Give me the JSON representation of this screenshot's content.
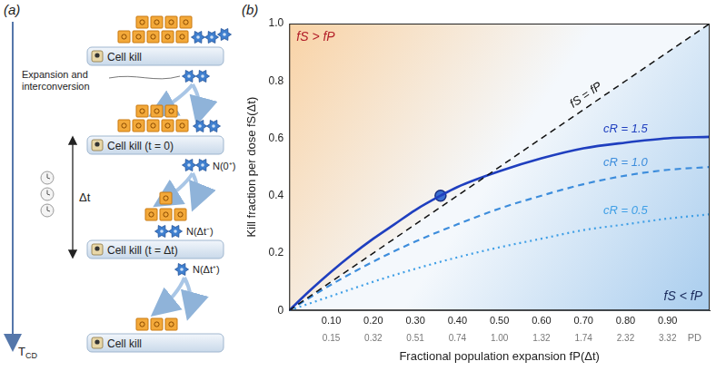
{
  "diagram": {
    "panel_label": "(a)",
    "kill_steps": [
      "Cell kill",
      "Cell kill (t = 0)",
      "Cell kill (t = Δt)",
      "Cell kill"
    ],
    "expansion_label": "Expansion and interconversion",
    "population_labels": [
      "N(0⁺)",
      "N(Δt⁻)",
      "N(Δt⁺)"
    ],
    "interval_label": "Δt",
    "time_label": "TCD"
  },
  "chart_data": {
    "type": "line",
    "panel_label": "(b)",
    "x_label": "Fractional population expansion fP(Δt)",
    "y_label": "Kill fraction per dose fS(Δt)",
    "xlim": [
      0,
      1
    ],
    "ylim": [
      0,
      1
    ],
    "xticks": [
      {
        "value": 0.1,
        "label": "0.10"
      },
      {
        "value": 0.2,
        "label": "0.20"
      },
      {
        "value": 0.3,
        "label": "0.30"
      },
      {
        "value": 0.4,
        "label": "0.40"
      },
      {
        "value": 0.5,
        "label": "0.50"
      },
      {
        "value": 0.6,
        "label": "0.60"
      },
      {
        "value": 0.7,
        "label": "0.70"
      },
      {
        "value": 0.8,
        "label": "0.80"
      },
      {
        "value": 0.9,
        "label": "0.90"
      }
    ],
    "pd_label": "PD",
    "pd_ticks": [
      {
        "value": 0.1,
        "label": "0.15"
      },
      {
        "value": 0.2,
        "label": "0.32"
      },
      {
        "value": 0.3,
        "label": "0.51"
      },
      {
        "value": 0.4,
        "label": "0.74"
      },
      {
        "value": 0.5,
        "label": "1.00"
      },
      {
        "value": 0.6,
        "label": "1.32"
      },
      {
        "value": 0.7,
        "label": "1.74"
      },
      {
        "value": 0.8,
        "label": "2.32"
      },
      {
        "value": 0.9,
        "label": "3.32"
      }
    ],
    "yticks": [
      0,
      0.2,
      0.4,
      0.6,
      0.8,
      {
        "value": 1,
        "label": "1.0"
      }
    ],
    "grid": false,
    "regions": [
      {
        "label": "fS > fP",
        "side": "above",
        "color": "#f9d3a6"
      },
      {
        "label": "fS < fP",
        "side": "below",
        "color": "#a9cdee"
      }
    ],
    "reference_line": {
      "name": "fS = fP",
      "x": [
        0,
        1
      ],
      "values": [
        0,
        1
      ],
      "color": "#111111",
      "line_style": "dashed"
    },
    "series": [
      {
        "name": "cR = 1.5",
        "color": "#1f3fbf",
        "line_style": "solid",
        "x": [
          0,
          0.05,
          0.1,
          0.15,
          0.2,
          0.25,
          0.3,
          0.36,
          0.4,
          0.5,
          0.6,
          0.7,
          0.8,
          0.9,
          1.0
        ],
        "values": [
          0,
          0.07,
          0.135,
          0.195,
          0.25,
          0.3,
          0.35,
          0.4,
          0.43,
          0.485,
          0.53,
          0.565,
          0.585,
          0.6,
          0.605
        ]
      },
      {
        "name": "cR = 1.0",
        "color": "#3d8ddc",
        "line_style": "dashed",
        "x": [
          0,
          0.1,
          0.2,
          0.3,
          0.4,
          0.5,
          0.6,
          0.7,
          0.8,
          0.9,
          1.0
        ],
        "values": [
          0,
          0.09,
          0.17,
          0.24,
          0.3,
          0.355,
          0.4,
          0.44,
          0.47,
          0.49,
          0.5
        ]
      },
      {
        "name": "cR = 0.5",
        "color": "#3f9fe6",
        "line_style": "dotted",
        "x": [
          0,
          0.1,
          0.2,
          0.3,
          0.4,
          0.5,
          0.6,
          0.7,
          0.8,
          0.9,
          1.0
        ],
        "values": [
          0,
          0.05,
          0.1,
          0.145,
          0.185,
          0.22,
          0.25,
          0.28,
          0.3,
          0.32,
          0.335
        ]
      }
    ],
    "highlight": {
      "x": 0.36,
      "y": 0.4,
      "marker": "circle",
      "color": "#3a6fd0"
    }
  }
}
